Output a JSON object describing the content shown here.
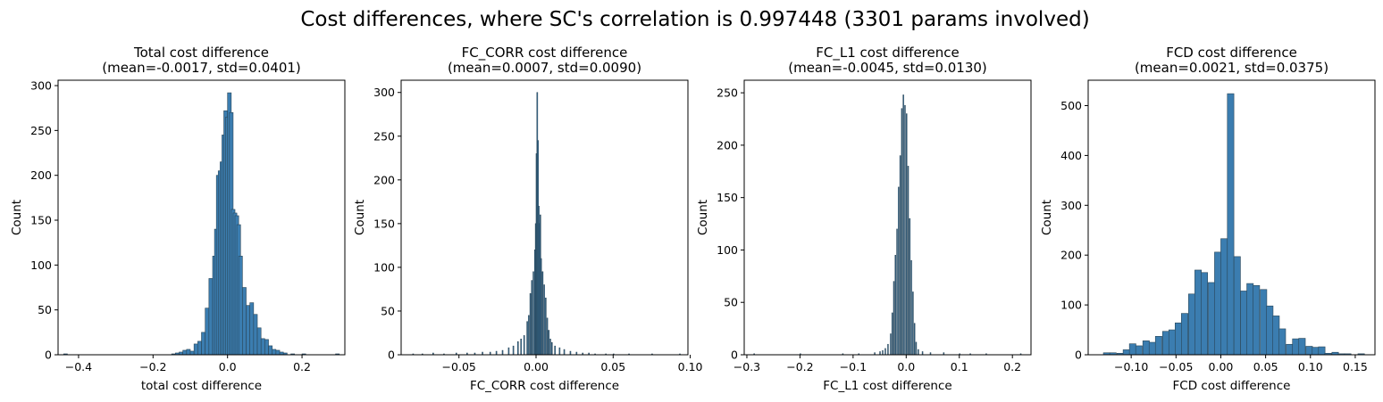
{
  "suptitle": "Cost differences, where SC's correlation is 0.997448 (3301 params involved)",
  "colors": {
    "bar_fill": "#3b7db0",
    "bar_edge": "#2a4658"
  },
  "chart_data": [
    {
      "type": "bar",
      "title": "Total cost difference",
      "subtitle": "(mean=-0.0017, std=0.0401)",
      "xlabel": "total cost difference",
      "ylabel": "Count",
      "xlim": [
        -0.455,
        0.315
      ],
      "ylim": [
        0,
        306
      ],
      "xticks": [
        -0.4,
        -0.2,
        0.0,
        0.2
      ],
      "xtick_labels": [
        "−0.4",
        "−0.2",
        "0.0",
        "0.2"
      ],
      "yticks": [
        0,
        50,
        100,
        150,
        200,
        250,
        300
      ],
      "bin_width": 0.01,
      "bins": [
        [
          -0.44,
          1
        ],
        [
          -0.15,
          1
        ],
        [
          -0.14,
          2
        ],
        [
          -0.13,
          3
        ],
        [
          -0.12,
          5
        ],
        [
          -0.11,
          6
        ],
        [
          -0.1,
          4
        ],
        [
          -0.09,
          12
        ],
        [
          -0.08,
          15
        ],
        [
          -0.07,
          25
        ],
        [
          -0.06,
          52
        ],
        [
          -0.05,
          85
        ],
        [
          -0.04,
          110
        ],
        [
          -0.035,
          140
        ],
        [
          -0.03,
          200
        ],
        [
          -0.025,
          205
        ],
        [
          -0.02,
          215
        ],
        [
          -0.015,
          245
        ],
        [
          -0.01,
          272
        ],
        [
          -0.005,
          265
        ],
        [
          0.0,
          292
        ],
        [
          0.005,
          270
        ],
        [
          0.01,
          162
        ],
        [
          0.015,
          158
        ],
        [
          0.02,
          155
        ],
        [
          0.025,
          145
        ],
        [
          0.03,
          110
        ],
        [
          0.04,
          75
        ],
        [
          0.05,
          55
        ],
        [
          0.06,
          58
        ],
        [
          0.07,
          45
        ],
        [
          0.08,
          30
        ],
        [
          0.09,
          18
        ],
        [
          0.1,
          17
        ],
        [
          0.11,
          10
        ],
        [
          0.12,
          6
        ],
        [
          0.13,
          5
        ],
        [
          0.14,
          3
        ],
        [
          0.15,
          2
        ],
        [
          0.17,
          1
        ],
        [
          0.2,
          1
        ],
        [
          0.29,
          1
        ]
      ]
    },
    {
      "type": "bar",
      "title": "FC_CORR cost difference",
      "subtitle": "(mean=0.0007, std=0.0090)",
      "xlabel": "FC_CORR cost difference",
      "ylabel": "Count",
      "xlim": [
        -0.0875,
        0.0985
      ],
      "ylim": [
        0,
        314
      ],
      "xticks": [
        -0.05,
        0.0,
        0.05,
        0.1
      ],
      "xtick_labels": [
        "−0.05",
        "0.00",
        "0.05",
        "0.10"
      ],
      "yticks": [
        0,
        50,
        100,
        150,
        200,
        250,
        300
      ],
      "bin_width": 0.00056,
      "bins": [
        [
          -0.08,
          1
        ],
        [
          -0.074,
          1
        ],
        [
          -0.067,
          2
        ],
        [
          -0.06,
          1
        ],
        [
          -0.052,
          2
        ],
        [
          -0.045,
          2
        ],
        [
          -0.04,
          2
        ],
        [
          -0.035,
          3
        ],
        [
          -0.03,
          3
        ],
        [
          -0.026,
          4
        ],
        [
          -0.022,
          5
        ],
        [
          -0.018,
          8
        ],
        [
          -0.015,
          10
        ],
        [
          -0.012,
          15
        ],
        [
          -0.01,
          18
        ],
        [
          -0.008,
          22
        ],
        [
          -0.006,
          38
        ],
        [
          -0.005,
          45
        ],
        [
          -0.004,
          70
        ],
        [
          -0.003,
          85
        ],
        [
          -0.002,
          95
        ],
        [
          -0.001,
          120
        ],
        [
          -0.0005,
          150
        ],
        [
          0.0,
          230
        ],
        [
          0.0005,
          300
        ],
        [
          0.001,
          245
        ],
        [
          0.0015,
          170
        ],
        [
          0.002,
          150
        ],
        [
          0.0025,
          160
        ],
        [
          0.003,
          110
        ],
        [
          0.004,
          95
        ],
        [
          0.005,
          80
        ],
        [
          0.006,
          65
        ],
        [
          0.007,
          42
        ],
        [
          0.008,
          28
        ],
        [
          0.009,
          18
        ],
        [
          0.01,
          14
        ],
        [
          0.012,
          10
        ],
        [
          0.015,
          8
        ],
        [
          0.018,
          6
        ],
        [
          0.022,
          4
        ],
        [
          0.026,
          3
        ],
        [
          0.03,
          2
        ],
        [
          0.034,
          2
        ],
        [
          0.038,
          1
        ],
        [
          0.045,
          1
        ],
        [
          0.05,
          1
        ],
        [
          0.06,
          1
        ],
        [
          0.075,
          1
        ],
        [
          0.093,
          1
        ]
      ]
    },
    {
      "type": "bar",
      "title": "FC_L1 cost difference",
      "subtitle": "(mean=-0.0045, std=0.0130)",
      "xlabel": "FC_L1 cost difference",
      "ylabel": "Count",
      "xlim": [
        -0.305,
        0.235
      ],
      "ylim": [
        0,
        262
      ],
      "xticks": [
        -0.3,
        -0.2,
        -0.1,
        0.0,
        0.1,
        0.2
      ],
      "xtick_labels": [
        "−0.3",
        "−0.2",
        "−0.1",
        "0.0",
        "0.1",
        "0.2"
      ],
      "yticks": [
        0,
        50,
        100,
        150,
        200,
        250
      ],
      "bin_width": 0.0015,
      "bins": [
        [
          -0.287,
          1
        ],
        [
          -0.2,
          1
        ],
        [
          -0.12,
          1
        ],
        [
          -0.09,
          1
        ],
        [
          -0.06,
          2
        ],
        [
          -0.05,
          3
        ],
        [
          -0.045,
          4
        ],
        [
          -0.04,
          6
        ],
        [
          -0.035,
          10
        ],
        [
          -0.03,
          20
        ],
        [
          -0.027,
          40
        ],
        [
          -0.024,
          70
        ],
        [
          -0.021,
          95
        ],
        [
          -0.018,
          120
        ],
        [
          -0.015,
          160
        ],
        [
          -0.012,
          190
        ],
        [
          -0.009,
          235
        ],
        [
          -0.006,
          248
        ],
        [
          -0.003,
          238
        ],
        [
          0.0,
          230
        ],
        [
          0.003,
          180
        ],
        [
          0.006,
          130
        ],
        [
          0.009,
          90
        ],
        [
          0.012,
          60
        ],
        [
          0.015,
          30
        ],
        [
          0.018,
          12
        ],
        [
          0.022,
          5
        ],
        [
          0.03,
          3
        ],
        [
          0.045,
          2
        ],
        [
          0.07,
          2
        ],
        [
          0.1,
          1
        ],
        [
          0.12,
          1
        ],
        [
          0.15,
          1
        ],
        [
          0.215,
          1
        ]
      ]
    },
    {
      "type": "bar",
      "title": "FCD cost difference",
      "subtitle": "(mean=0.0021, std=0.0375)",
      "xlabel": "FCD cost difference",
      "ylabel": "Count",
      "xlim": [
        -0.148,
        0.172
      ],
      "ylim": [
        0,
        551
      ],
      "xticks": [
        -0.1,
        -0.05,
        0.0,
        0.05,
        0.1,
        0.15
      ],
      "xtick_labels": [
        "−0.10",
        "−0.05",
        "0.00",
        "0.05",
        "0.10",
        "0.15"
      ],
      "yticks": [
        0,
        100,
        200,
        300,
        400,
        500
      ],
      "bin_width": 0.0073,
      "bins": [
        [
          -0.131,
          4
        ],
        [
          -0.124,
          4
        ],
        [
          -0.116,
          3
        ],
        [
          -0.109,
          10
        ],
        [
          -0.102,
          22
        ],
        [
          -0.095,
          18
        ],
        [
          -0.087,
          28
        ],
        [
          -0.08,
          25
        ],
        [
          -0.073,
          37
        ],
        [
          -0.065,
          47
        ],
        [
          -0.058,
          50
        ],
        [
          -0.051,
          64
        ],
        [
          -0.044,
          83
        ],
        [
          -0.036,
          122
        ],
        [
          -0.029,
          170
        ],
        [
          -0.022,
          165
        ],
        [
          -0.014,
          145
        ],
        [
          -0.007,
          206
        ],
        [
          0.0,
          233
        ],
        [
          0.0073,
          524
        ],
        [
          0.0146,
          197
        ],
        [
          0.022,
          128
        ],
        [
          0.029,
          143
        ],
        [
          0.036,
          139
        ],
        [
          0.044,
          131
        ],
        [
          0.051,
          98
        ],
        [
          0.058,
          78
        ],
        [
          0.065,
          52
        ],
        [
          0.073,
          21
        ],
        [
          0.08,
          32
        ],
        [
          0.087,
          33
        ],
        [
          0.095,
          17
        ],
        [
          0.102,
          15
        ],
        [
          0.109,
          16
        ],
        [
          0.116,
          3
        ],
        [
          0.124,
          5
        ],
        [
          0.131,
          2
        ],
        [
          0.138,
          2
        ],
        [
          0.153,
          2
        ]
      ]
    }
  ]
}
